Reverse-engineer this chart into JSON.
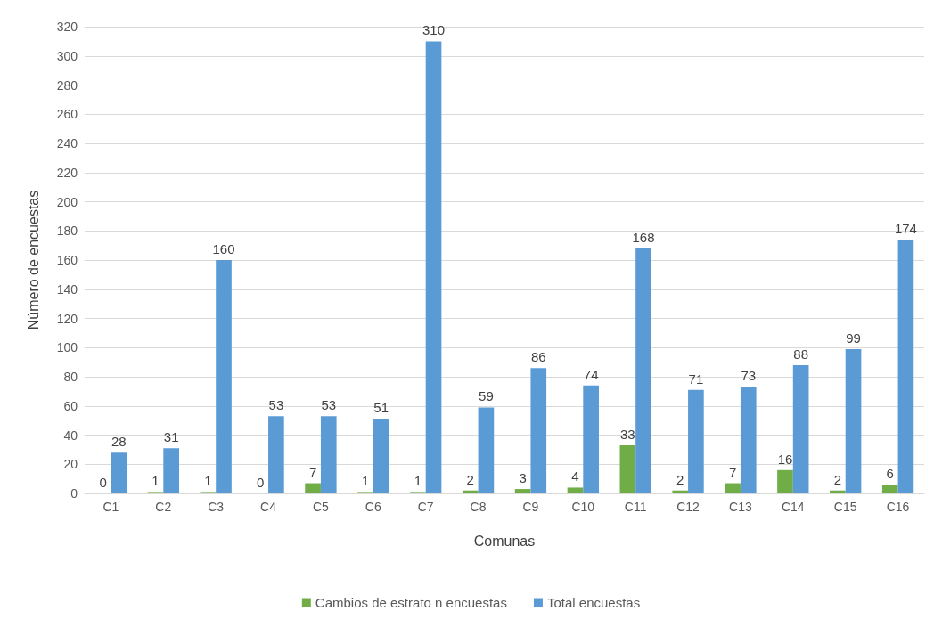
{
  "chart_data": {
    "type": "bar",
    "xlabel": "Comunas",
    "ylabel": "Número de encuestas",
    "categories": [
      "C1",
      "C2",
      "C3",
      "C4",
      "C5",
      "C6",
      "C7",
      "C8",
      "C9",
      "C10",
      "C11",
      "C12",
      "C13",
      "C14",
      "C15",
      "C16"
    ],
    "series": [
      {
        "name": "Cambios de estrato n encuestas",
        "color": "#70ad47",
        "values": [
          0,
          1,
          1,
          0,
          7,
          1,
          1,
          2,
          3,
          4,
          33,
          2,
          7,
          16,
          2,
          6
        ]
      },
      {
        "name": "Total encuestas",
        "color": "#5b9bd5",
        "values": [
          28,
          31,
          160,
          53,
          53,
          51,
          310,
          59,
          86,
          74,
          168,
          71,
          73,
          88,
          99,
          174
        ]
      }
    ],
    "ylim": [
      0,
      320
    ],
    "yticks": [
      0,
      20,
      40,
      60,
      80,
      100,
      120,
      140,
      160,
      180,
      200,
      220,
      240,
      260,
      280,
      300,
      320
    ],
    "grid": "y",
    "legend": "bottom",
    "data_labels": true
  }
}
